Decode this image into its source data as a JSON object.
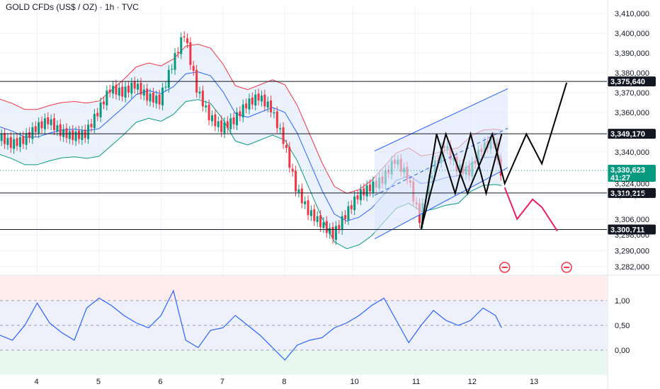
{
  "title": "GOLD CFDs (US$ / OZ) · 1h · TVC",
  "colors": {
    "up": "#089981",
    "down": "#f23645",
    "bb_upper": "#f23645",
    "bb_lower": "#089981",
    "bb_basis": "#2962ff",
    "bb_fill": "#e3ecfb",
    "channel": "#2962ff",
    "channel_fill": "#dce6fb",
    "rsi": "#2962ff",
    "price_tag": "#089981",
    "level_tag": "#131722",
    "projection_up": "#000000",
    "projection_down": "#e91e63"
  },
  "price_axis": {
    "ticks": [
      "3,410,000",
      "3,400,000",
      "3,390,000",
      "3,380,000",
      "3,370,000",
      "3,360,000",
      "3,340,000",
      "3,324,000",
      "3,318,000",
      "3,306,000",
      "3,298,000",
      "3,290,000",
      "3,282,000"
    ]
  },
  "level_tags": [
    {
      "label": "3,375,640",
      "value": 3375640
    },
    {
      "label": "3,349,170",
      "value": 3349170
    },
    {
      "label": "3,319,215",
      "value": 3319215
    },
    {
      "label": "3,300,711",
      "value": 3300711
    }
  ],
  "current_price": {
    "label": "3,330,623",
    "countdown": "41:27",
    "value": 3330623
  },
  "time_axis": {
    "ticks": [
      "4",
      "5",
      "6",
      "7",
      "8",
      "10",
      "11",
      "12",
      "13"
    ]
  },
  "oscillator": {
    "ticks": [
      "1,00",
      "0,50",
      "0,00"
    ],
    "levels": [
      1.0,
      0.5,
      0.0
    ]
  },
  "events": [
    {
      "icon": "us-flag-icon"
    },
    {
      "icon": "us-flag-icon"
    }
  ],
  "chart_data": [
    {
      "type": "line",
      "title": "GOLD CFDs (US$ / OZ) · 1h · TVC",
      "x": [
        3.0,
        3.2,
        3.4,
        3.6,
        3.8,
        4.0,
        4.2,
        4.4,
        4.6,
        4.8,
        5.0,
        5.2,
        5.4,
        5.6,
        5.8,
        6.0,
        6.2,
        6.4,
        6.6,
        6.8,
        7.0,
        7.2,
        7.4,
        7.6,
        7.8,
        8.0,
        8.2,
        8.4,
        8.6,
        8.8,
        9.0,
        9.2,
        9.4,
        9.6,
        9.8,
        10.0,
        10.2,
        10.4,
        10.6,
        10.8,
        11.0,
        11.2,
        11.4,
        11.5
      ],
      "series": [
        {
          "values": [
            3358,
            3352,
            3348,
            3344,
            3346,
            3352,
            3356,
            3350,
            3348,
            3349,
            3360,
            3372,
            3370,
            3374,
            3368,
            3366,
            3384,
            3400,
            3372,
            3358,
            3352,
            3356,
            3364,
            3368,
            3362,
            3346,
            3322,
            3310,
            3304,
            3298,
            3308,
            3318,
            3322,
            3326,
            3336,
            3328,
            3306,
            3330,
            3344,
            3332,
            3330,
            3342,
            3346,
            3330
          ]
        }
      ],
      "ylim": [
        3278000,
        3414000
      ],
      "xlim": [
        3.4,
        13.2
      ]
    },
    {
      "type": "line",
      "x": [
        3.0,
        3.2,
        3.4,
        3.6,
        3.8,
        4.0,
        4.2,
        4.4,
        4.6,
        4.8,
        5.0,
        5.2,
        5.4,
        5.6,
        5.8,
        6.0,
        6.2,
        6.4,
        6.6,
        6.8,
        7.0,
        7.2,
        7.4,
        7.6,
        7.8,
        8.0,
        8.2,
        8.4,
        8.6,
        8.8,
        9.0,
        9.2,
        9.4,
        9.6,
        9.8,
        10.0,
        10.2,
        10.4,
        10.6,
        10.8,
        11.0,
        11.2,
        11.4,
        11.5
      ],
      "series": [
        {
          "values": [
            0.6,
            0.4,
            0.3,
            0.2,
            0.5,
            0.95,
            0.55,
            0.35,
            0.2,
            0.85,
            1.05,
            0.9,
            0.7,
            0.55,
            0.45,
            0.7,
            1.2,
            0.2,
            0.05,
            0.4,
            0.45,
            0.7,
            0.5,
            0.3,
            0.05,
            -0.2,
            0.1,
            0.2,
            0.25,
            0.45,
            0.55,
            0.7,
            0.9,
            1.05,
            0.6,
            0.15,
            0.5,
            0.8,
            0.6,
            0.5,
            0.6,
            0.85,
            0.7,
            0.45
          ]
        }
      ],
      "ylim": [
        -0.5,
        1.5
      ],
      "xlim": [
        3.4,
        13.2
      ]
    }
  ]
}
